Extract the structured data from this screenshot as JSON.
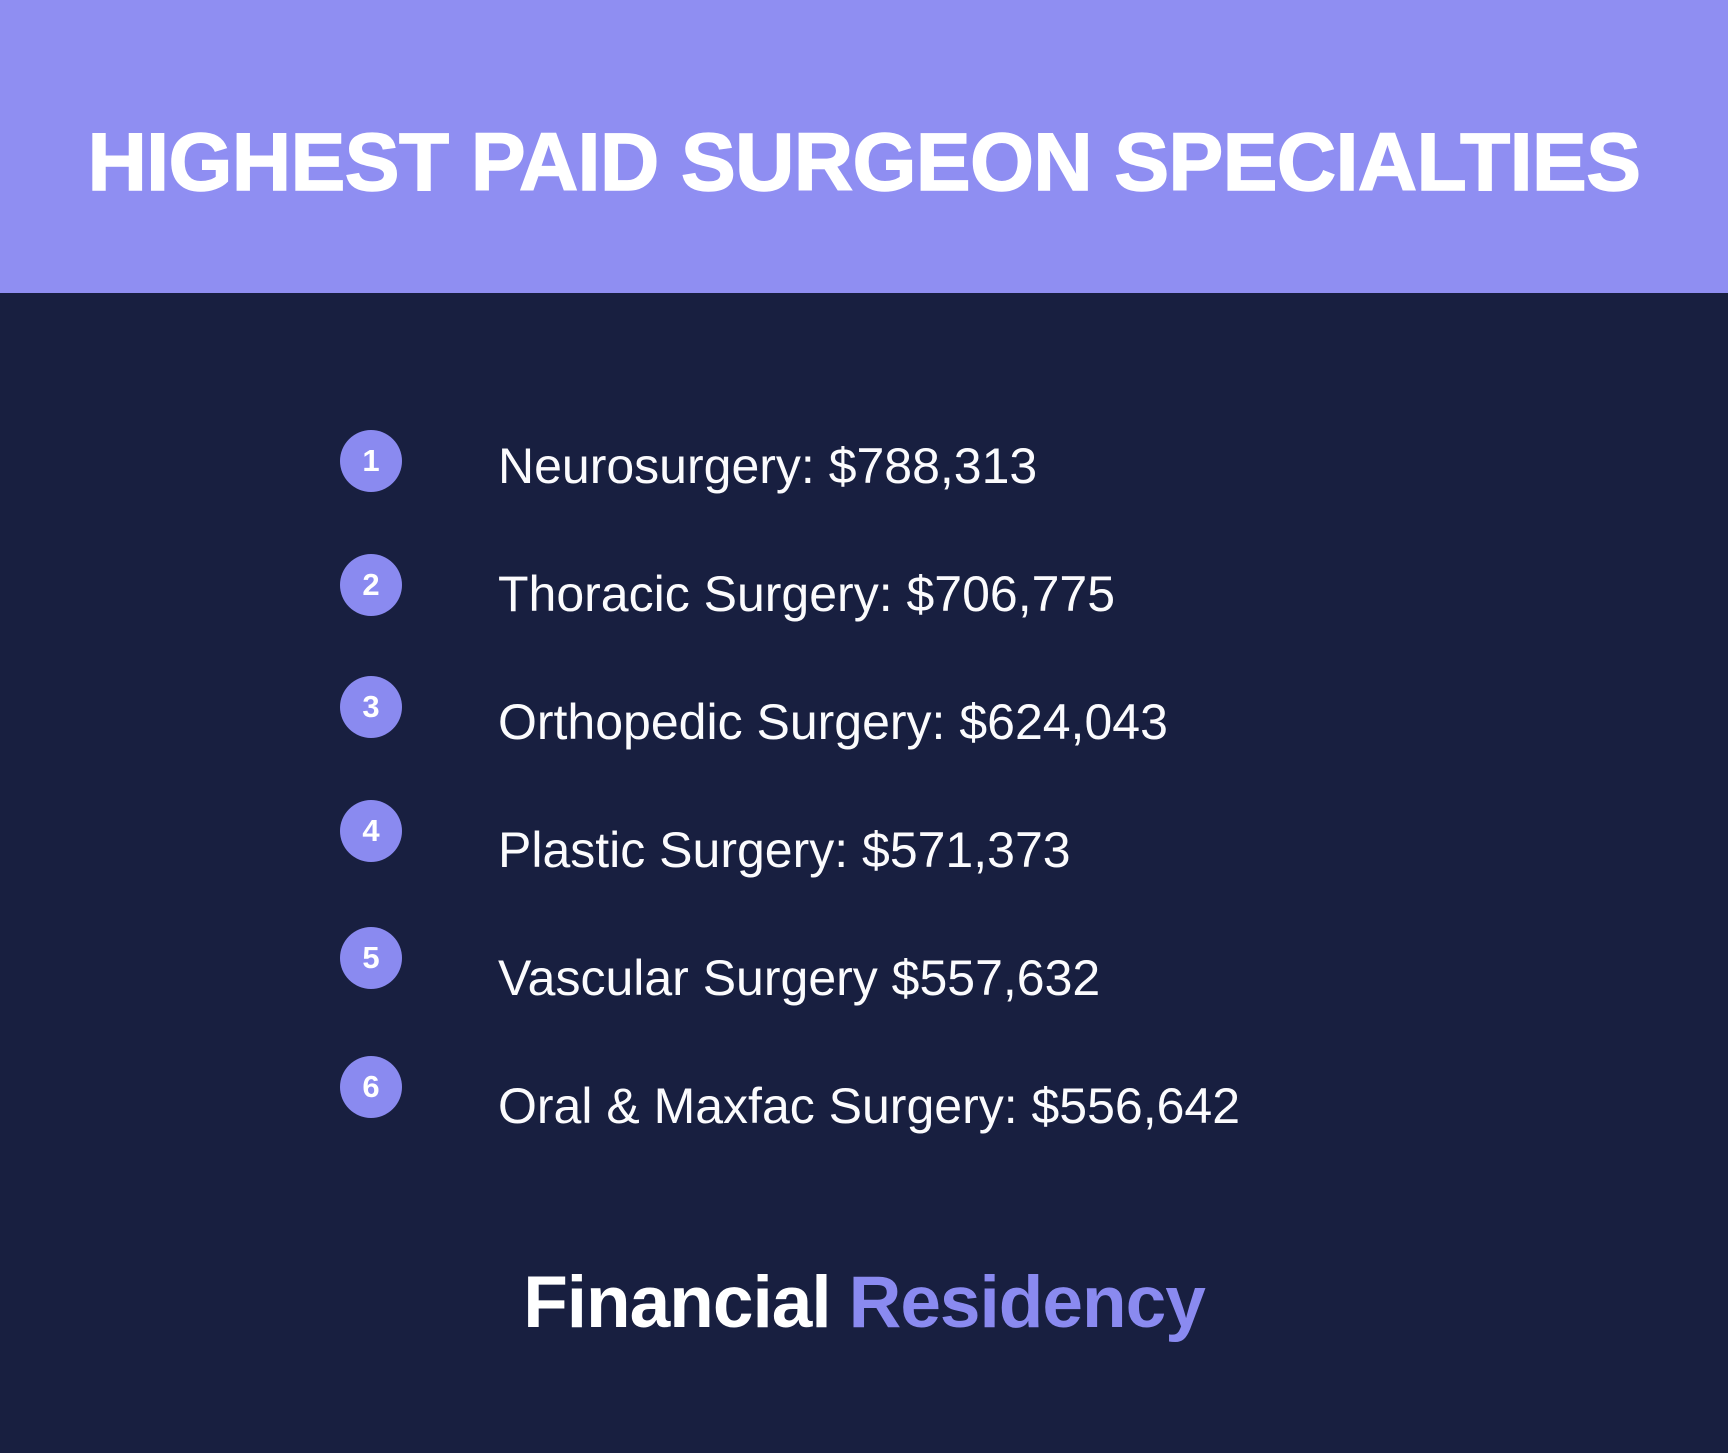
{
  "header": {
    "title": "HIGHEST PAID SURGEON SPECIALTIES"
  },
  "list": {
    "items": [
      {
        "rank": "1",
        "label": "Neurosurgery: $788,313"
      },
      {
        "rank": "2",
        "label": "Thoracic Surgery: $706,775"
      },
      {
        "rank": "3",
        "label": "Orthopedic Surgery: $624,043"
      },
      {
        "rank": "4",
        "label": "Plastic Surgery: $571,373"
      },
      {
        "rank": "5",
        "label": "Vascular Surgery $557,632"
      },
      {
        "rank": "6",
        "label": "Oral & Maxfac Surgery: $556,642"
      }
    ]
  },
  "footer": {
    "brand_first": "Financial",
    "brand_second": "Residency"
  },
  "colors": {
    "header_bg": "#8f8ef2",
    "background": "#181f40",
    "badge": "#8a8af0",
    "brand_accent": "#8a8af0",
    "text": "#ffffff"
  },
  "chart_data": {
    "type": "table",
    "title": "HIGHEST PAID SURGEON SPECIALTIES",
    "categories": [
      "Neurosurgery",
      "Thoracic Surgery",
      "Orthopedic Surgery",
      "Plastic Surgery",
      "Vascular Surgery",
      "Oral & Maxfac Surgery"
    ],
    "values": [
      788313,
      706775,
      624043,
      571373,
      557632,
      556642
    ],
    "unit": "USD",
    "ranks": [
      1,
      2,
      3,
      4,
      5,
      6
    ],
    "source_brand": "Financial Residency"
  }
}
